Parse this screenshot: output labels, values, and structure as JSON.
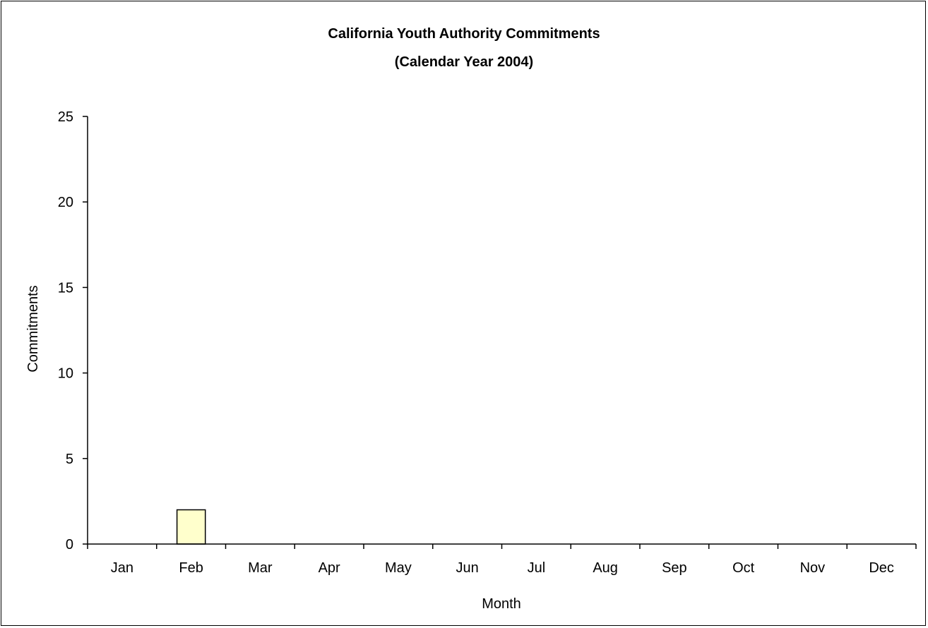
{
  "chart_data": {
    "type": "bar",
    "title": "California Youth Authority Commitments",
    "subtitle": "(Calendar Year 2004)",
    "xlabel": "Month",
    "ylabel": "Commitments",
    "categories": [
      "Jan",
      "Feb",
      "Mar",
      "Apr",
      "May",
      "Jun",
      "Jul",
      "Aug",
      "Sep",
      "Oct",
      "Nov",
      "Dec"
    ],
    "values": [
      0,
      2,
      0,
      0,
      0,
      0,
      0,
      0,
      0,
      0,
      0,
      0
    ],
    "ylim": [
      0,
      25
    ],
    "yticks": [
      0,
      5,
      10,
      15,
      20,
      25
    ],
    "grid": false,
    "legend": "none",
    "colors": {
      "bar_fill": "#ffffcc",
      "bar_stroke": "#000000",
      "axis": "#000000"
    }
  }
}
